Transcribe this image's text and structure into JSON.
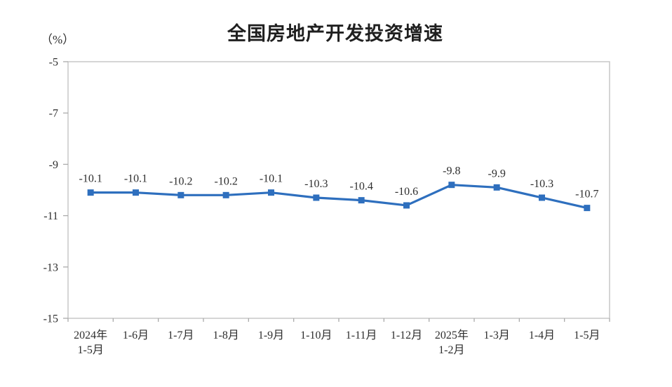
{
  "chart": {
    "title": "全国房地产开发投资增速",
    "unit": "（%）"
  },
  "chart_data": {
    "type": "line",
    "title": "全国房地产开发投资增速",
    "unit_label": "（%）",
    "categories": [
      [
        "2024年",
        "1-5月"
      ],
      [
        "1-6月"
      ],
      [
        "1-7月"
      ],
      [
        "1-8月"
      ],
      [
        "1-9月"
      ],
      [
        "1-10月"
      ],
      [
        "1-11月"
      ],
      [
        "1-12月"
      ],
      [
        "2025年",
        "1-2月"
      ],
      [
        "1-3月"
      ],
      [
        "1-4月"
      ],
      [
        "1-5月"
      ]
    ],
    "values": [
      -10.1,
      -10.1,
      -10.2,
      -10.2,
      -10.1,
      -10.3,
      -10.4,
      -10.6,
      -9.8,
      -9.9,
      -10.3,
      -10.7
    ],
    "data_labels": [
      "-10.1",
      "-10.1",
      "-10.2",
      "-10.2",
      "-10.1",
      "-10.3",
      "-10.4",
      "-10.6",
      "-9.8",
      "-9.9",
      "-10.3",
      "-10.7"
    ],
    "ylim": [
      -15,
      -5
    ],
    "yticks": [
      -5,
      -7,
      -9,
      -11,
      -13,
      -15
    ],
    "grid": false,
    "legend": "none",
    "marker": "square",
    "line_color": "#2e6fbe",
    "frame_color": "#c7c7c7",
    "tick_color": "#ababab",
    "label_color": "#2e2e2e"
  }
}
